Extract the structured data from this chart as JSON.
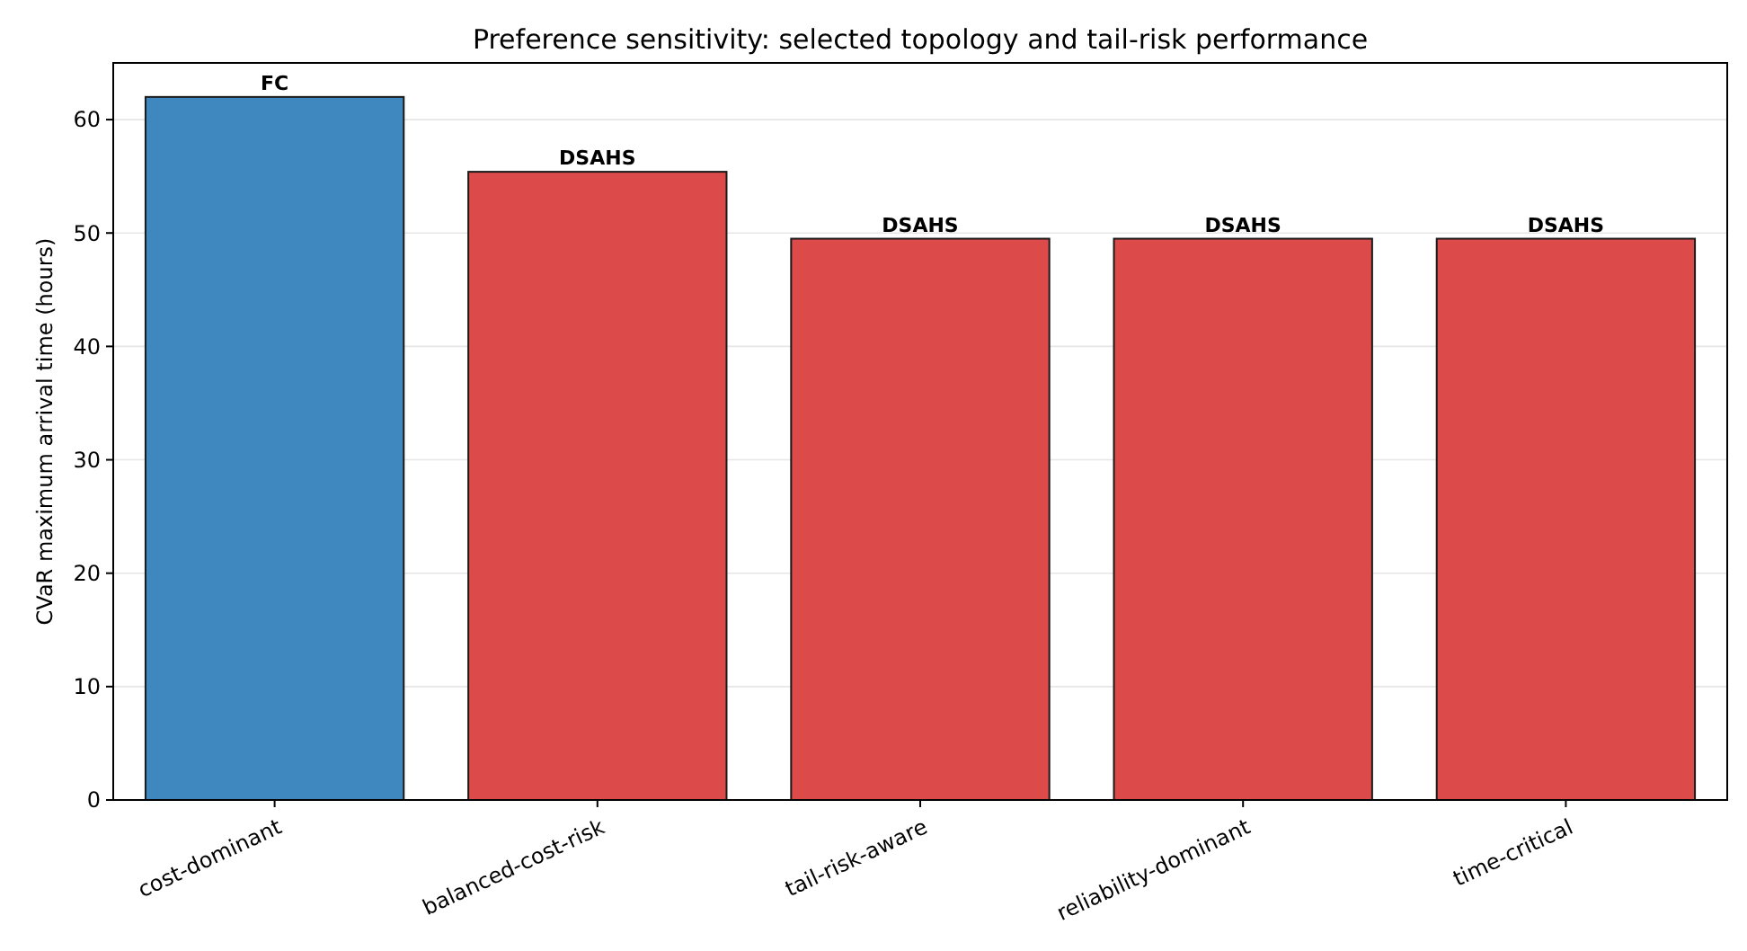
{
  "chart_data": {
    "type": "bar",
    "title": "Preference sensitivity: selected topology and tail-risk performance",
    "ylabel": "CVaR maximum arrival time (hours)",
    "categories": [
      "cost-dominant",
      "balanced-cost-risk",
      "tail-risk-aware",
      "reliability-dominant",
      "time-critical"
    ],
    "values": [
      62.0,
      55.4,
      49.5,
      49.5,
      49.5
    ],
    "colors": [
      "#3f88bf",
      "#dc4a4a",
      "#dc4a4a",
      "#dc4a4a",
      "#dc4a4a"
    ],
    "value_labels": [
      "FC",
      "DSAHS",
      "DSAHS",
      "DSAHS",
      "DSAHS"
    ],
    "ylim": [
      0,
      65
    ],
    "yticks": [
      0,
      10,
      20,
      30,
      40,
      50,
      60
    ],
    "grid": "y"
  }
}
